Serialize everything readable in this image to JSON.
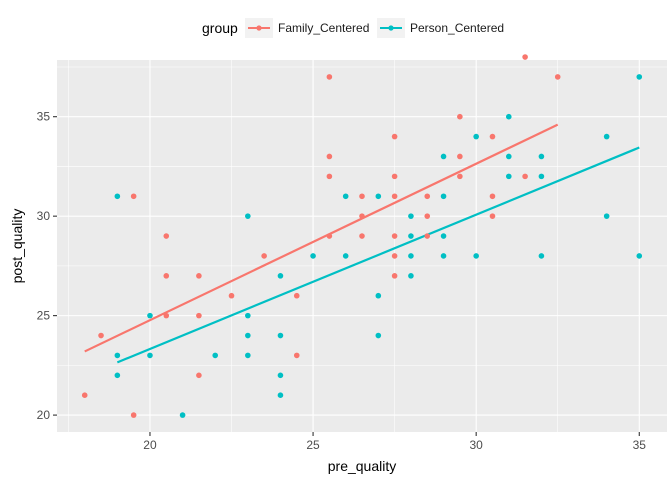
{
  "chart_data": {
    "type": "scatter",
    "title": "",
    "xlabel": "pre_quality",
    "ylabel": "post_quality",
    "xlim": [
      17.15,
      35.85
    ],
    "ylim": [
      19.15,
      37.85
    ],
    "x_ticks": [
      20,
      25,
      30,
      35
    ],
    "y_ticks": [
      20,
      25,
      30,
      35
    ],
    "grid": true,
    "legend": {
      "title": "group",
      "position": "top"
    },
    "series": [
      {
        "name": "Family_Centered",
        "color": "#F8766D",
        "points": [
          [
            18,
            21
          ],
          [
            18.5,
            24
          ],
          [
            19.5,
            31
          ],
          [
            19.5,
            20
          ],
          [
            20.5,
            29
          ],
          [
            20.5,
            27
          ],
          [
            20.5,
            25
          ],
          [
            21.5,
            27
          ],
          [
            21.5,
            25
          ],
          [
            21.5,
            22
          ],
          [
            22.5,
            26
          ],
          [
            23.5,
            28
          ],
          [
            24.5,
            26
          ],
          [
            24.5,
            23
          ],
          [
            25.5,
            37
          ],
          [
            25.5,
            33
          ],
          [
            25.5,
            32
          ],
          [
            25.5,
            29
          ],
          [
            26.5,
            31
          ],
          [
            26.5,
            30
          ],
          [
            26.5,
            29
          ],
          [
            27.5,
            34
          ],
          [
            27.5,
            32
          ],
          [
            27.5,
            31
          ],
          [
            27.5,
            29
          ],
          [
            27.5,
            28
          ],
          [
            27.5,
            27
          ],
          [
            28.5,
            31
          ],
          [
            28.5,
            30
          ],
          [
            28.5,
            29
          ],
          [
            29.5,
            35
          ],
          [
            29.5,
            33
          ],
          [
            29.5,
            32
          ],
          [
            30.5,
            34
          ],
          [
            30.5,
            31
          ],
          [
            30.5,
            30
          ],
          [
            31.5,
            38
          ],
          [
            31.5,
            32
          ],
          [
            32.5,
            37
          ]
        ],
        "fit": [
          [
            18,
            23.2
          ],
          [
            32.5,
            34.6
          ]
        ]
      },
      {
        "name": "Person_Centered",
        "color": "#00BFC4",
        "points": [
          [
            19,
            31
          ],
          [
            19,
            23
          ],
          [
            19,
            22
          ],
          [
            20,
            25
          ],
          [
            20,
            23
          ],
          [
            21,
            20
          ],
          [
            22,
            23
          ],
          [
            23,
            30
          ],
          [
            23,
            25
          ],
          [
            23,
            24
          ],
          [
            23,
            23
          ],
          [
            24,
            27
          ],
          [
            24,
            24
          ],
          [
            24,
            22
          ],
          [
            24,
            21
          ],
          [
            25,
            28
          ],
          [
            26,
            31
          ],
          [
            26,
            28
          ],
          [
            27,
            31
          ],
          [
            27,
            26
          ],
          [
            27,
            24
          ],
          [
            28,
            30
          ],
          [
            28,
            29
          ],
          [
            28,
            28
          ],
          [
            28,
            27
          ],
          [
            29,
            33
          ],
          [
            29,
            31
          ],
          [
            29,
            29
          ],
          [
            29,
            28
          ],
          [
            30,
            34
          ],
          [
            30,
            28
          ],
          [
            31,
            35
          ],
          [
            31,
            33
          ],
          [
            31,
            32
          ],
          [
            32,
            33
          ],
          [
            32,
            32
          ],
          [
            32,
            28
          ],
          [
            34,
            34
          ],
          [
            34,
            30
          ],
          [
            35,
            37
          ],
          [
            35,
            28
          ]
        ],
        "fit": [
          [
            19,
            22.65
          ],
          [
            35,
            33.45
          ]
        ]
      }
    ]
  }
}
